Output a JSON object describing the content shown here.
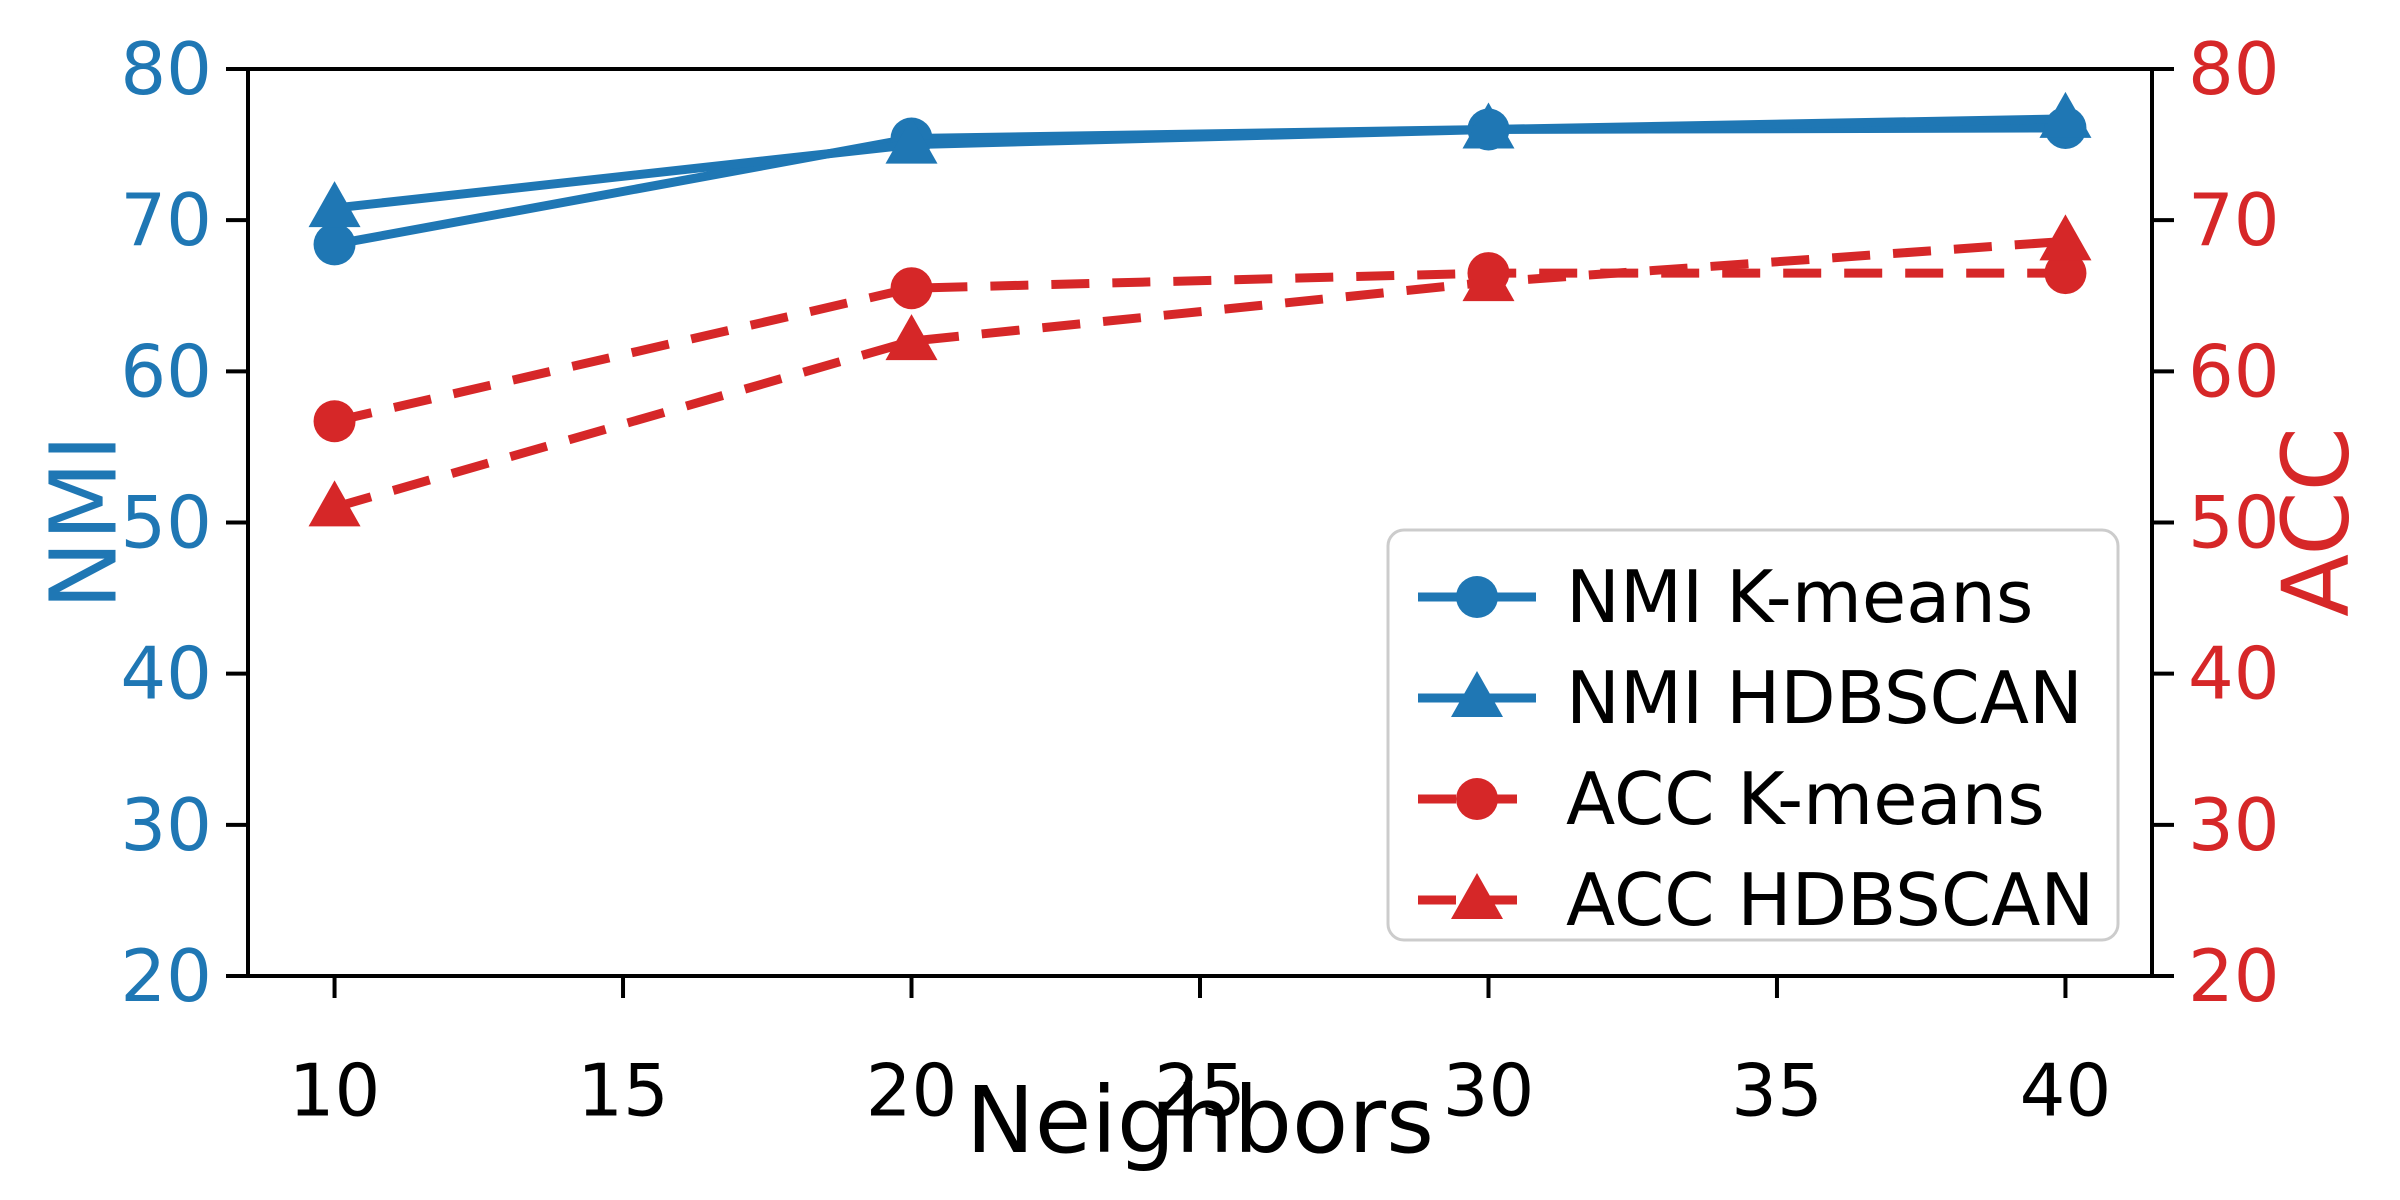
{
  "chart_data": {
    "type": "line",
    "title": "",
    "xlabel": "Neighbors",
    "ylabel_left": "NMI",
    "ylabel_right": "ACC",
    "xlim": [
      8.5,
      41.5
    ],
    "ylim": [
      20,
      80
    ],
    "x_ticks": [
      10,
      15,
      20,
      25,
      30,
      35,
      40
    ],
    "y_ticks_left": [
      20,
      30,
      40,
      50,
      60,
      70,
      80
    ],
    "y_ticks_right": [
      20,
      30,
      40,
      50,
      60,
      70,
      80
    ],
    "grid": false,
    "legend_position": "lower right",
    "x": [
      10,
      20,
      30,
      40
    ],
    "series": [
      {
        "name": "NMI K-means",
        "axis": "left",
        "color": "#1f77b4",
        "linestyle": "solid",
        "marker": "circle",
        "values": [
          68.4,
          75.4,
          76.0,
          76.1
        ]
      },
      {
        "name": "NMI HDBSCAN",
        "axis": "left",
        "color": "#1f77b4",
        "linestyle": "solid",
        "marker": "triangle",
        "values": [
          70.8,
          75.0,
          76.0,
          76.7
        ]
      },
      {
        "name": "ACC K-means",
        "axis": "right",
        "color": "#d62728",
        "linestyle": "dashed",
        "marker": "circle",
        "values": [
          56.7,
          65.5,
          66.5,
          66.5
        ]
      },
      {
        "name": "ACC HDBSCAN",
        "axis": "right",
        "color": "#d62728",
        "linestyle": "dashed",
        "marker": "triangle",
        "values": [
          51.0,
          62.0,
          65.9,
          68.6
        ]
      }
    ]
  },
  "colors": {
    "left_axis_accent": "#1f77b4",
    "right_axis_accent": "#d62728",
    "x_axis_text": "#000000",
    "spine": "#000000",
    "legend_border": "#cccccc",
    "legend_background": "#ffffff"
  }
}
